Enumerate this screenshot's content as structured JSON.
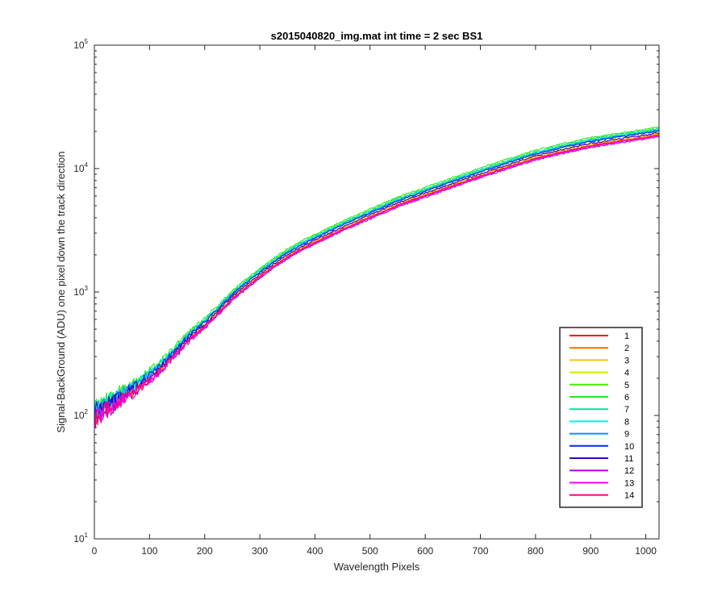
{
  "chart_data": {
    "type": "line",
    "title": "s2015040820_img.mat int time = 2 sec   BS1",
    "xlabel": "Wavelength Pixels",
    "ylabel": "Signal-BackGround (ADU) one pixel down the track direction",
    "xlim": [
      0,
      1024
    ],
    "ylim": [
      10,
      100000
    ],
    "yscale": "log",
    "x_ticks": [
      0,
      100,
      200,
      300,
      400,
      500,
      600,
      700,
      800,
      900,
      1000
    ],
    "y_ticks": [
      {
        "base": "10",
        "exp": "1",
        "value": 10
      },
      {
        "base": "10",
        "exp": "2",
        "value": 100
      },
      {
        "base": "10",
        "exp": "3",
        "value": 1000
      },
      {
        "base": "10",
        "exp": "4",
        "value": 10000
      },
      {
        "base": "10",
        "exp": "5",
        "value": 100000
      }
    ],
    "grid": false,
    "legend_position": "lower-right",
    "x": [
      0,
      25,
      50,
      75,
      100,
      125,
      150,
      175,
      200,
      225,
      250,
      275,
      300,
      325,
      350,
      375,
      400,
      450,
      500,
      550,
      600,
      650,
      700,
      750,
      800,
      850,
      900,
      950,
      1000,
      1024
    ],
    "series": [
      {
        "name": "1",
        "color": "#ff0000",
        "values": [
          95,
          115,
          135,
          158,
          195,
          245,
          320,
          420,
          520,
          670,
          870,
          1080,
          1320,
          1600,
          1900,
          2200,
          2500,
          3200,
          4000,
          5000,
          6000,
          7200,
          8600,
          10200,
          12000,
          13600,
          15200,
          16500,
          17800,
          18500
        ]
      },
      {
        "name": "2",
        "color": "#ff6a00",
        "values": [
          97,
          117,
          138,
          161,
          199,
          250,
          327,
          428,
          530,
          683,
          887,
          1101,
          1346,
          1632,
          1938,
          2244,
          2550,
          3264,
          4080,
          5100,
          6120,
          7344,
          8772,
          10404,
          12240,
          13872,
          15504,
          16830,
          18156,
          18870
        ]
      },
      {
        "name": "3",
        "color": "#ffc800",
        "values": [
          99,
          120,
          140,
          164,
          203,
          255,
          333,
          437,
          541,
          697,
          905,
          1123,
          1373,
          1664,
          1976,
          2288,
          2600,
          3328,
          4160,
          5200,
          6240,
          7488,
          8944,
          10608,
          12480,
          14144,
          15808,
          17160,
          18512,
          19240
        ]
      },
      {
        "name": "4",
        "color": "#c8f000",
        "values": [
          104,
          126,
          148,
          172,
          213,
          267,
          349,
          458,
          567,
          730,
          948,
          1177,
          1439,
          1744,
          2071,
          2398,
          2725,
          3488,
          4360,
          5450,
          6540,
          7848,
          9374,
          11118,
          13080,
          14824,
          16568,
          17985,
          19402,
          20165
        ]
      },
      {
        "name": "5",
        "color": "#46f000",
        "values": [
          109,
          132,
          155,
          180,
          223,
          280,
          365,
          479,
          593,
          764,
          992,
          1231,
          1505,
          1824,
          2166,
          2508,
          2850,
          3648,
          4560,
          5700,
          6840,
          8208,
          9804,
          11628,
          13680,
          15504,
          17328,
          18810,
          20292,
          21090
        ]
      },
      {
        "name": "6",
        "color": "#28e628",
        "values": [
          112,
          136,
          159,
          185,
          229,
          288,
          376,
          494,
          611,
          787,
          1022,
          1269,
          1551,
          1880,
          2233,
          2585,
          2938,
          3760,
          4700,
          5875,
          7050,
          8460,
          10105,
          11985,
          14100,
          15980,
          17860,
          19388,
          20915,
          21738
        ]
      },
      {
        "name": "7",
        "color": "#00e696",
        "values": [
          108,
          131,
          153,
          179,
          221,
          278,
          362,
          477,
          590,
          760,
          987,
          1225,
          1497,
          1815,
          2155,
          2495,
          2836,
          3629,
          4537,
          5671,
          6805,
          8166,
          9754,
          11569,
          13610,
          15425,
          17240,
          18714,
          20189,
          20983
        ]
      },
      {
        "name": "8",
        "color": "#00f0f0",
        "values": [
          106,
          128,
          151,
          176,
          217,
          273,
          356,
          469,
          580,
          747,
          970,
          1204,
          1472,
          1784,
          2119,
          2453,
          2788,
          3568,
          4460,
          5575,
          6690,
          8028,
          9589,
          11373,
          13380,
          15164,
          16948,
          18398,
          19847,
          20628
        ]
      },
      {
        "name": "9",
        "color": "#0096ff",
        "values": [
          105,
          127,
          149,
          174,
          215,
          270,
          353,
          464,
          574,
          739,
          960,
          1192,
          1457,
          1766,
          2097,
          2428,
          2759,
          3531,
          4414,
          5518,
          6621,
          7945,
          9490,
          11256,
          13243,
          15008,
          16774,
          18209,
          19643,
          20416
        ]
      },
      {
        "name": "10",
        "color": "#0028ff",
        "values": [
          104,
          126,
          148,
          172,
          213,
          268,
          350,
          460,
          569,
          733,
          952,
          1182,
          1444,
          1751,
          2079,
          2407,
          2736,
          3501,
          4377,
          5471,
          6565,
          7878,
          9410,
          11161,
          13130,
          14881,
          16632,
          18055,
          19477,
          20243
        ]
      },
      {
        "name": "11",
        "color": "#3200c8",
        "values": [
          100,
          121,
          142,
          166,
          205,
          258,
          337,
          443,
          548,
          706,
          917,
          1138,
          1391,
          1686,
          2002,
          2318,
          2635,
          3372,
          4215,
          5269,
          6323,
          7587,
          9063,
          10749,
          12645,
          14331,
          16017,
          17387,
          18758,
          19495
        ]
      },
      {
        "name": "12",
        "color": "#b400ff",
        "values": [
          93,
          112,
          132,
          154,
          190,
          239,
          312,
          410,
          507,
          654,
          849,
          1054,
          1289,
          1563,
          1856,
          2148,
          2441,
          3124,
          3905,
          4881,
          5858,
          7029,
          8396,
          9958,
          11715,
          13277,
          14839,
          16109,
          17378,
          18061
        ]
      },
      {
        "name": "13",
        "color": "#ff00ff",
        "values": [
          95,
          114,
          134,
          157,
          193,
          243,
          318,
          417,
          516,
          665,
          864,
          1072,
          1311,
          1589,
          1887,
          2186,
          2484,
          3178,
          3973,
          4966,
          5959,
          7151,
          8541,
          10131,
          11918,
          13507,
          15097,
          16388,
          17679,
          18374
        ]
      },
      {
        "name": "14",
        "color": "#ff0078",
        "values": [
          96,
          116,
          136,
          159,
          196,
          246,
          322,
          423,
          523,
          674,
          876,
          1087,
          1330,
          1612,
          1914,
          2216,
          2519,
          3223,
          4029,
          5037,
          6044,
          7253,
          8663,
          10274,
          12087,
          13699,
          15311,
          16621,
          17930,
          18635
        ]
      }
    ]
  }
}
